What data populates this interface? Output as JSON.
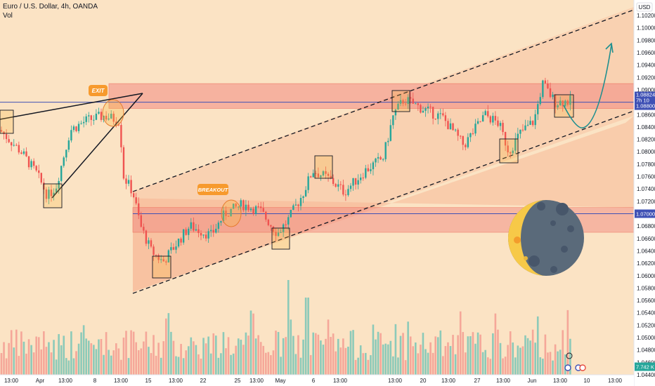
{
  "header": {
    "symbol": "Euro / U.S. Dollar, 4h, OANDA",
    "volume_label": "Vol"
  },
  "currency_badge": "USD",
  "annotations": {
    "exit": "EXIT",
    "breakout": "BREAKOUT"
  },
  "price_labels": {
    "current": [
      "1.08824",
      "7h 10"
    ],
    "resistance": "1.08800",
    "support": "1.07000"
  },
  "volume_last": "7.742 K",
  "chart_data": {
    "type": "candlestick",
    "title": "Euro / U.S. Dollar, 4h, OANDA",
    "ylim": [
      1.044,
      1.1045
    ],
    "y_ticks": [
      1.044,
      1.046,
      1.048,
      1.05,
      1.052,
      1.054,
      1.056,
      1.058,
      1.06,
      1.062,
      1.064,
      1.066,
      1.068,
      1.07,
      1.072,
      1.074,
      1.076,
      1.078,
      1.08,
      1.082,
      1.084,
      1.086,
      1.088,
      1.09,
      1.092,
      1.094,
      1.096,
      1.098,
      1.1,
      1.102
    ],
    "y_tick_labels": [
      "1.04400",
      "1.04600",
      "1.04800",
      "1.05000",
      "1.05200",
      "1.05400",
      "1.05600",
      "1.05800",
      "1.06000",
      "1.06200",
      "1.06400",
      "1.06600",
      "1.06800",
      "1.07000",
      "1.07200",
      "1.07400",
      "1.07600",
      "1.07800",
      "1.08000",
      "1.08200",
      "1.08400",
      "1.08600",
      "1.08800",
      "1.09000",
      "1.09200",
      "1.09400",
      "1.09600",
      "1.09800",
      "1.10000",
      "1.10200"
    ],
    "x_tick_labels": [
      "13:00",
      "Apr",
      "13:00",
      "8",
      "13:00",
      "15",
      "13:00",
      "22",
      "25",
      "13:00",
      "May",
      "6",
      "13:00",
      "13:00",
      "20",
      "13:00",
      "27",
      "13:00",
      "Jun",
      "13:00",
      "10",
      "13:00"
    ],
    "price_path": [
      [
        "Mar 28",
        1.0835
      ],
      [
        "Apr 1",
        1.079
      ],
      [
        "Apr 2",
        1.0728
      ],
      [
        "Apr 4",
        1.0835
      ],
      [
        "Apr 9",
        1.086
      ],
      [
        "Apr 10",
        1.0745
      ],
      [
        "Apr 16",
        1.062
      ],
      [
        "Apr 19",
        1.064
      ],
      [
        "Apr 23",
        1.07
      ],
      [
        "Apr 26",
        1.0715
      ],
      [
        "May 1",
        1.067
      ],
      [
        "May 3",
        1.076
      ],
      [
        "May 8",
        1.074
      ],
      [
        "May 13",
        1.08
      ],
      [
        "May 16",
        1.0885
      ],
      [
        "May 23",
        1.081
      ],
      [
        "May 28",
        1.086
      ],
      [
        "May 30",
        1.08
      ],
      [
        "Jun 4",
        1.091
      ],
      [
        "Jun 7",
        1.088
      ]
    ],
    "volume": {
      "last": 7742,
      "unit": "K"
    },
    "levels": [
      {
        "name": "resistance",
        "value": 1.088
      },
      {
        "name": "support",
        "value": 1.07
      }
    ],
    "zones": [
      {
        "from": 1.088,
        "to": 1.091
      },
      {
        "from": 1.067,
        "to": 1.071
      }
    ],
    "channel": {
      "type": "ascending-parallel"
    },
    "grid": false
  }
}
